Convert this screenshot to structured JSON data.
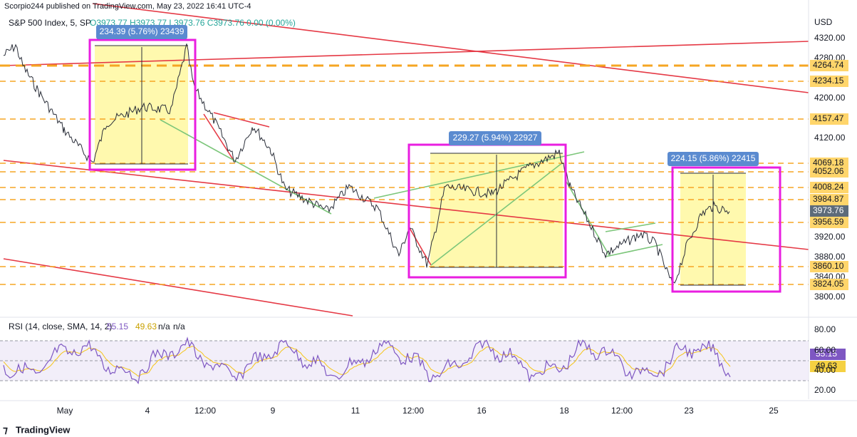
{
  "header": {
    "publisher": "Scorpio244 published on TradingView.com, May 23, 2022 16:41 UTC-4",
    "symbol": "S&P 500 Index, 5, SP",
    "ohlc": "O3973.77 H3973.77 L3973.76 C3973.76 0.00 (0.00%)"
  },
  "currency": "USD",
  "price_axis": [
    "4320.00",
    "4280.00",
    "4200.00",
    "4120.00",
    "3920.00",
    "3880.00",
    "3840.00",
    "3800.00"
  ],
  "price_labels": [
    "4264.74",
    "4234.15",
    "4157.47",
    "4069.18",
    "4052.06",
    "4008.24",
    "3984.87",
    "3973.76",
    "3956.59",
    "3860.10",
    "3824.05"
  ],
  "measurements": [
    "234.39 (5.76%) 23439",
    "229.27 (5.94%) 22927",
    "224.15 (5.86%) 22415"
  ],
  "rsi": {
    "label": "RSI (14, close, SMA, 14, 2)",
    "rsi_value": "55.15",
    "sma_value": "49.63",
    "na_1": "n/a",
    "na_2": "n/a",
    "axis": [
      "80.00",
      "60.00",
      "40.00",
      "20.00"
    ]
  },
  "time_axis": [
    "May",
    "4",
    "12:00",
    "9",
    "11",
    "12:00",
    "16",
    "18",
    "12:00",
    "23",
    "25"
  ],
  "footer": "TradingView"
}
